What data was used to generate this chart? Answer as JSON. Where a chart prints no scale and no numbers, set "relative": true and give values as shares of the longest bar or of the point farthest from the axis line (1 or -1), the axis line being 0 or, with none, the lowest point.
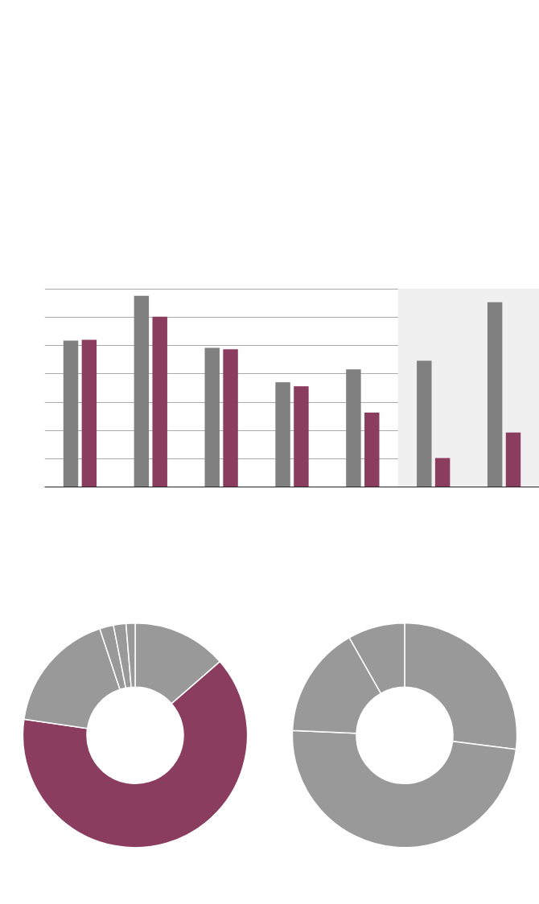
{
  "chart_data": [
    {
      "type": "bar",
      "relative": true,
      "categories": [
        null,
        null,
        null,
        null,
        null,
        null,
        null
      ],
      "series": [
        {
          "color": "#808080",
          "values": [
            0.766,
            1,
            0.728,
            0.548,
            0.615,
            0.661,
            0.967
          ]
        },
        {
          "color": "#8b3d5f",
          "values": [
            0.77,
            0.891,
            0.72,
            0.527,
            0.389,
            0.151,
            0.285
          ]
        }
      ],
      "grid": "y"
    },
    {
      "type": "donut",
      "categories": [
        null,
        null,
        null,
        null,
        null,
        null
      ],
      "values": [
        13.6,
        63.7,
        17.6,
        2.0,
        1.8,
        1.3
      ],
      "colors": [
        "#999999",
        "#8b3d5f",
        "#999999",
        "#999999",
        "#999999",
        "#999999"
      ]
    },
    {
      "type": "donut",
      "categories": [
        null,
        null,
        null,
        null
      ],
      "values": [
        27.0,
        48.7,
        16.1,
        8.2
      ],
      "colors": [
        "#999999",
        "#999999",
        "#999999",
        "#999999"
      ]
    }
  ]
}
